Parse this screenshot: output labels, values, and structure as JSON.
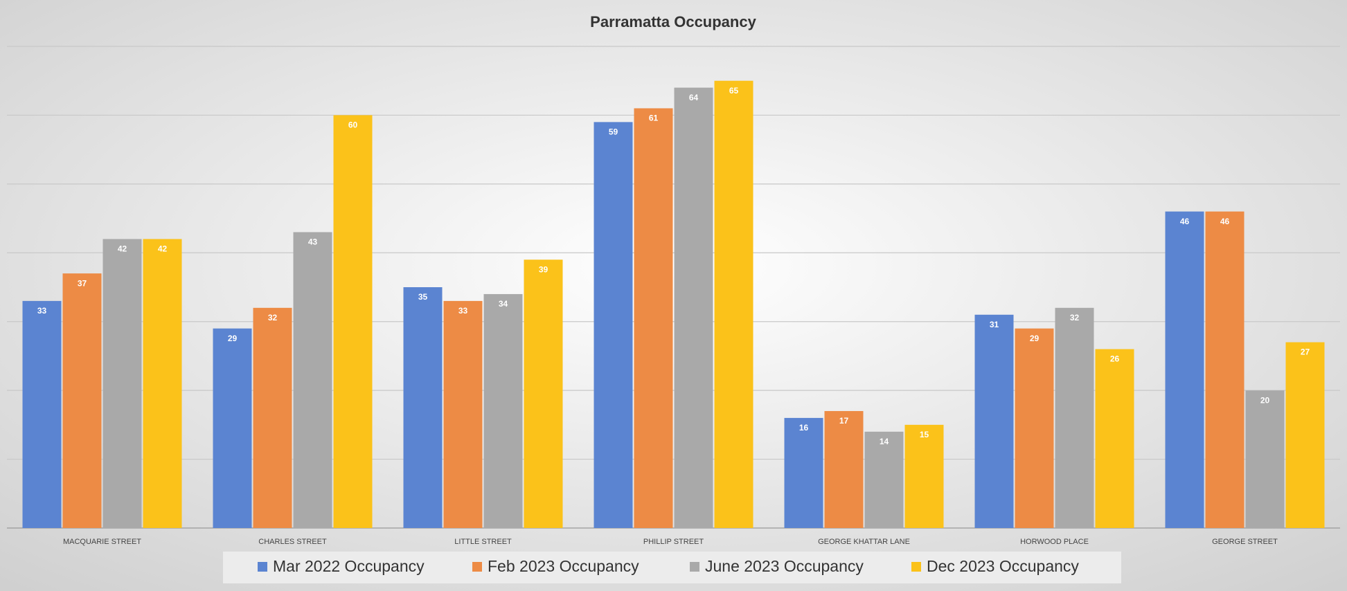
{
  "chart_data": {
    "type": "bar",
    "title": "Parramatta Occupancy",
    "categories": [
      "MACQUARIE STREET",
      "CHARLES STREET",
      "LITTLE STREET",
      "PHILLIP STREET",
      "GEORGE KHATTAR LANE",
      "HORWOOD PLACE",
      "GEORGE STREET"
    ],
    "series": [
      {
        "name": "Mar 2022 Occupancy",
        "color": "#5b84d1",
        "values": [
          33,
          29,
          35,
          59,
          16,
          31,
          46
        ]
      },
      {
        "name": "Feb 2023 Occupancy",
        "color": "#ed8b45",
        "values": [
          37,
          32,
          33,
          61,
          17,
          29,
          46
        ]
      },
      {
        "name": "June 2023 Occupancy",
        "color": "#a9a9a9",
        "values": [
          42,
          43,
          34,
          64,
          14,
          32,
          20
        ]
      },
      {
        "name": "Dec 2023 Occupancy",
        "color": "#fbc21a",
        "values": [
          42,
          60,
          39,
          65,
          15,
          26,
          27
        ]
      }
    ],
    "ylim": [
      0,
      70
    ],
    "yticks": [
      0,
      10,
      20,
      30,
      40,
      50,
      60,
      70
    ],
    "grid": true,
    "legend": "bottom"
  }
}
